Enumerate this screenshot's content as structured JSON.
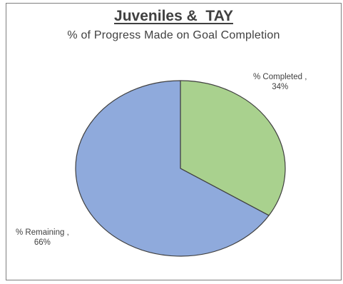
{
  "chart_data": {
    "type": "pie",
    "title": "Juveniles &  TAY",
    "subtitle": "% of Progress Made on Goal Completion",
    "slices": [
      {
        "label": "% Completed ,",
        "value": 34,
        "display": "34%",
        "color": "#A9D18E"
      },
      {
        "label": "% Remaining ,",
        "value": 66,
        "display": "66%",
        "color": "#8FAADC"
      }
    ],
    "start_angle_deg": 0,
    "direction": "clockwise",
    "legend": "none",
    "slice_border_color": "#404040"
  }
}
